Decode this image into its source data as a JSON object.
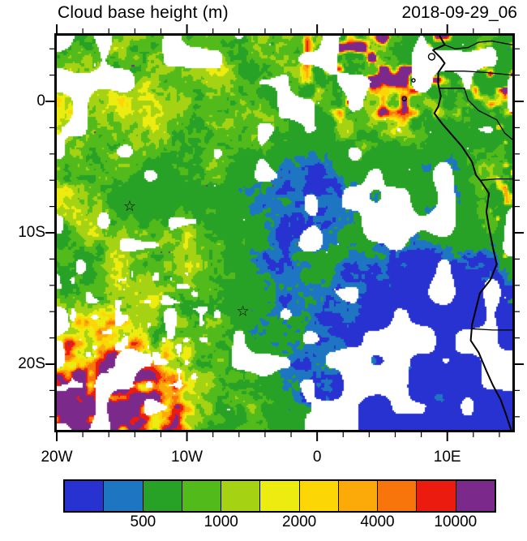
{
  "chart_data": {
    "type": "heatmap",
    "title": "Cloud base height (m)",
    "timestamp": "2018-09-29_06",
    "unit": "m",
    "lon_range": [
      -20,
      15
    ],
    "lat_range": [
      -25,
      5
    ],
    "x_ticks": [
      {
        "deg": -20,
        "label": "20W"
      },
      {
        "deg": -10,
        "label": "10W"
      },
      {
        "deg": 0,
        "label": "0"
      },
      {
        "deg": 10,
        "label": "10E"
      }
    ],
    "y_ticks": [
      {
        "deg": 0,
        "label": "0"
      },
      {
        "deg": -10,
        "label": "10S"
      },
      {
        "deg": -20,
        "label": "20S"
      }
    ],
    "minor_tick_step_deg": 2,
    "colorbar": {
      "colors": [
        "#2732d1",
        "#1e76c2",
        "#27a227",
        "#52bb1b",
        "#a5d313",
        "#ecec10",
        "#fdd605",
        "#fca90a",
        "#f8750c",
        "#ec1b10",
        "#7b2a8c"
      ],
      "boundary_labels": [
        {
          "index": 2,
          "text": "500"
        },
        {
          "index": 4,
          "text": "1000"
        },
        {
          "index": 6,
          "text": "2000"
        },
        {
          "index": 8,
          "text": "4000"
        },
        {
          "index": 10,
          "text": "10000"
        }
      ]
    },
    "markers": [
      {
        "symbol": "☆",
        "lon": -14.4,
        "lat": -8.0
      },
      {
        "symbol": "☆",
        "lon": -5.7,
        "lat": -16.0
      }
    ],
    "coastline": [
      [
        9.4,
        5.0
      ],
      [
        9.8,
        4.3
      ],
      [
        8.9,
        3.9
      ],
      [
        9.5,
        3.3
      ],
      [
        9.8,
        2.9
      ],
      [
        9.3,
        2.2
      ],
      [
        9.3,
        1.3
      ],
      [
        9.5,
        0.4
      ],
      [
        9.3,
        -0.4
      ],
      [
        9.0,
        -0.9
      ],
      [
        9.6,
        -1.7
      ],
      [
        10.4,
        -2.6
      ],
      [
        11.1,
        -3.4
      ],
      [
        11.9,
        -4.6
      ],
      [
        12.2,
        -5.6
      ],
      [
        12.6,
        -6.1
      ],
      [
        13.2,
        -7.0
      ],
      [
        13.0,
        -8.4
      ],
      [
        13.2,
        -9.6
      ],
      [
        13.5,
        -11.1
      ],
      [
        13.8,
        -12.4
      ],
      [
        13.3,
        -13.6
      ],
      [
        12.5,
        -14.6
      ],
      [
        12.2,
        -15.8
      ],
      [
        11.9,
        -17.0
      ],
      [
        11.8,
        -18.2
      ],
      [
        12.4,
        -19.1
      ],
      [
        13.0,
        -20.5
      ],
      [
        13.5,
        -21.6
      ],
      [
        14.1,
        -22.7
      ],
      [
        14.5,
        -23.8
      ],
      [
        14.9,
        -25.0
      ]
    ],
    "borders": [
      [
        [
          9.8,
          4.3
        ],
        [
          10.6,
          4.0
        ],
        [
          11.6,
          4.1
        ],
        [
          12.4,
          4.5
        ],
        [
          13.4,
          4.6
        ],
        [
          15.0,
          4.3
        ]
      ],
      [
        [
          9.8,
          2.3
        ],
        [
          11.3,
          2.3
        ],
        [
          13.0,
          2.2
        ],
        [
          15.0,
          2.0
        ]
      ],
      [
        [
          9.3,
          1.0
        ],
        [
          11.3,
          1.0
        ],
        [
          11.6,
          0.1
        ],
        [
          12.4,
          -0.7
        ],
        [
          13.8,
          -1.4
        ],
        [
          14.4,
          -2.4
        ],
        [
          15.0,
          -2.9
        ]
      ],
      [
        [
          12.6,
          -6.0
        ],
        [
          13.8,
          -5.9
        ],
        [
          15.0,
          -5.9
        ]
      ],
      [
        [
          11.8,
          -17.3
        ],
        [
          13.5,
          -17.4
        ],
        [
          15.0,
          -17.4
        ]
      ]
    ],
    "islands": [
      {
        "lon": 8.8,
        "lat": 3.4,
        "r": 4
      },
      {
        "lon": 7.4,
        "lat": 1.6,
        "r": 2
      },
      {
        "lon": 6.7,
        "lat": 0.2,
        "r": 2.5
      }
    ]
  }
}
